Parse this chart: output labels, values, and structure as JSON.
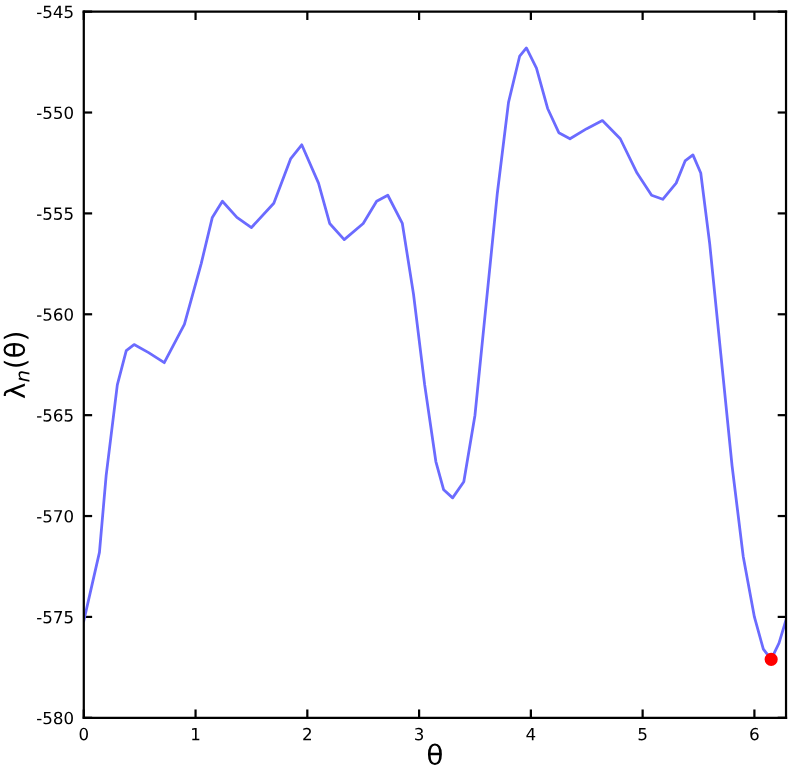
{
  "chart_data": {
    "type": "line",
    "xlabel": "θ",
    "ylabel": "λ$_{n}$(θ)",
    "xlim": [
      0,
      6.283
    ],
    "ylim": [
      -580,
      -545
    ],
    "xticks": [
      0,
      1,
      2,
      3,
      4,
      5,
      6
    ],
    "yticks": [
      -580,
      -575,
      -570,
      -565,
      -560,
      -555,
      -550,
      -545
    ],
    "grid": false,
    "legend": false,
    "series": [
      {
        "color": "#6b6bff",
        "x": [
          0,
          0.07,
          0.14,
          0.2,
          0.3,
          0.38,
          0.45,
          0.58,
          0.72,
          0.9,
          1.05,
          1.15,
          1.24,
          1.37,
          1.5,
          1.7,
          1.85,
          1.95,
          2.1,
          2.2,
          2.33,
          2.5,
          2.62,
          2.72,
          2.85,
          2.95,
          3.05,
          3.15,
          3.22,
          3.3,
          3.4,
          3.5,
          3.6,
          3.7,
          3.8,
          3.9,
          3.96,
          4.05,
          4.15,
          4.25,
          4.35,
          4.5,
          4.64,
          4.8,
          4.95,
          5.08,
          5.18,
          5.3,
          5.38,
          5.45,
          5.52,
          5.6,
          5.7,
          5.8,
          5.9,
          6.0,
          6.08,
          6.15,
          6.22,
          6.28
        ],
        "values": [
          -575.2,
          -573.5,
          -571.8,
          -568,
          -563.5,
          -561.8,
          -561.5,
          -561.9,
          -562.4,
          -560.5,
          -557.5,
          -555.2,
          -554.4,
          -555.2,
          -555.7,
          -554.5,
          -552.3,
          -551.6,
          -553.5,
          -555.5,
          -556.3,
          -555.5,
          -554.4,
          -554.1,
          -555.5,
          -559,
          -563.5,
          -567.3,
          -568.7,
          -569.1,
          -568.3,
          -565,
          -559.5,
          -554,
          -549.5,
          -547.2,
          -546.8,
          -547.8,
          -549.8,
          -551,
          -551.3,
          -550.8,
          -550.4,
          -551.3,
          -553,
          -554.1,
          -554.3,
          -553.5,
          -552.4,
          -552.1,
          -553,
          -556.5,
          -562,
          -567.5,
          -572,
          -575,
          -576.6,
          -577.1,
          -576.3,
          -575.2
        ],
        "marker": "none"
      },
      {
        "type": "scatter",
        "color": "#ff0000",
        "x": [
          6.15
        ],
        "values": [
          -577.1
        ],
        "marker": "circle"
      }
    ]
  }
}
